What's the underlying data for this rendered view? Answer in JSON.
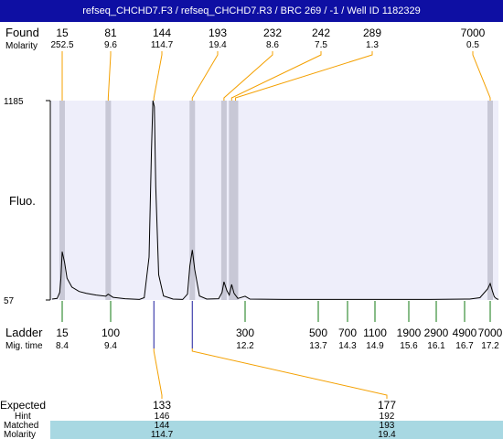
{
  "title": "refseq_CHCHD7.F3 / refseq_CHCHD7.R3 / BRC 269 / -1 / Well ID 1182329",
  "row_labels": {
    "found": "Found",
    "molarity": "Molarity",
    "fluo": "Fluo.",
    "ladder": "Ladder",
    "mig_time": "Mig. time",
    "expected": "Expected",
    "hint": "Hint",
    "matched": "Matched",
    "molarity_bottom": "Molarity"
  },
  "colors": {
    "title_bg": "#0e0fa3",
    "plot_bg": "#eeeefa",
    "peak_band": "#c8c8d6",
    "found_line": "#f4a000",
    "ladder_tick": "#107a10",
    "expected_tick": "#1a1a9c",
    "matched_bg": "#a8d8e2",
    "trace": "#000000"
  },
  "chart_data": {
    "type": "line",
    "title": "refseq_CHCHD7.F3 / refseq_CHCHD7.R3 / BRC 269 / -1 / Well ID 1182329",
    "ylabel": "Fluo.",
    "xlabel": "",
    "ylim": [
      57,
      1185
    ],
    "y_tick_labels": [
      "1185",
      "57"
    ],
    "found": [
      {
        "size": "15",
        "molarity": "252.5",
        "mig_time": 8.4
      },
      {
        "size": "81",
        "molarity": "9.6",
        "mig_time": 9.35
      },
      {
        "size": "144",
        "molarity": "114.7",
        "mig_time": 10.3
      },
      {
        "size": "193",
        "molarity": "19.4",
        "mig_time": 11.1
      },
      {
        "size": "232",
        "molarity": "8.6",
        "mig_time": 11.76
      },
      {
        "size": "242",
        "molarity": "7.5",
        "mig_time": 11.92
      },
      {
        "size": "289",
        "molarity": "1.3",
        "mig_time": 12.0
      },
      {
        "size": "7000",
        "molarity": "0.5",
        "mig_time": 17.2
      }
    ],
    "ladder": [
      {
        "size": "15",
        "mig_time": "8.4"
      },
      {
        "size": "100",
        "mig_time": "9.4"
      },
      {
        "size": "300",
        "mig_time": "12.2"
      },
      {
        "size": "500",
        "mig_time": "13.7"
      },
      {
        "size": "700",
        "mig_time": "14.3"
      },
      {
        "size": "1100",
        "mig_time": "14.9"
      },
      {
        "size": "1900",
        "mig_time": "15.6"
      },
      {
        "size": "2900",
        "mig_time": "16.1"
      },
      {
        "size": "4900",
        "mig_time": "16.7"
      },
      {
        "size": "7000",
        "mig_time": "17.2"
      }
    ],
    "expected": [
      {
        "size": "133",
        "hint": "146",
        "matched": "144",
        "molarity": "114.7",
        "mig_time": 10.3
      },
      {
        "size": "177",
        "hint": "192",
        "matched": "193",
        "molarity": "19.4",
        "mig_time": 11.1
      }
    ],
    "trace": [
      [
        8.0,
        62
      ],
      [
        8.2,
        66
      ],
      [
        8.3,
        100
      ],
      [
        8.35,
        180
      ],
      [
        8.4,
        330
      ],
      [
        8.45,
        270
      ],
      [
        8.5,
        180
      ],
      [
        8.6,
        130
      ],
      [
        8.75,
        105
      ],
      [
        8.9,
        95
      ],
      [
        9.1,
        85
      ],
      [
        9.3,
        78
      ],
      [
        9.35,
        90
      ],
      [
        9.45,
        72
      ],
      [
        9.7,
        64
      ],
      [
        10.0,
        60
      ],
      [
        10.1,
        70
      ],
      [
        10.2,
        300
      ],
      [
        10.25,
        900
      ],
      [
        10.28,
        1185
      ],
      [
        10.31,
        1150
      ],
      [
        10.34,
        700
      ],
      [
        10.4,
        200
      ],
      [
        10.5,
        80
      ],
      [
        10.7,
        62
      ],
      [
        10.9,
        60
      ],
      [
        11.0,
        90
      ],
      [
        11.05,
        250
      ],
      [
        11.1,
        340
      ],
      [
        11.15,
        230
      ],
      [
        11.25,
        80
      ],
      [
        11.4,
        62
      ],
      [
        11.65,
        64
      ],
      [
        11.72,
        100
      ],
      [
        11.76,
        160
      ],
      [
        11.82,
        110
      ],
      [
        11.87,
        85
      ],
      [
        11.92,
        145
      ],
      [
        11.97,
        95
      ],
      [
        12.05,
        66
      ],
      [
        12.2,
        78
      ],
      [
        12.3,
        62
      ],
      [
        13.0,
        60
      ],
      [
        14.0,
        60
      ],
      [
        15.0,
        60
      ],
      [
        16.0,
        60
      ],
      [
        16.8,
        62
      ],
      [
        17.0,
        70
      ],
      [
        17.15,
        120
      ],
      [
        17.2,
        150
      ],
      [
        17.3,
        110
      ],
      [
        17.4,
        75
      ],
      [
        17.5,
        64
      ],
      [
        17.6,
        60
      ]
    ]
  }
}
